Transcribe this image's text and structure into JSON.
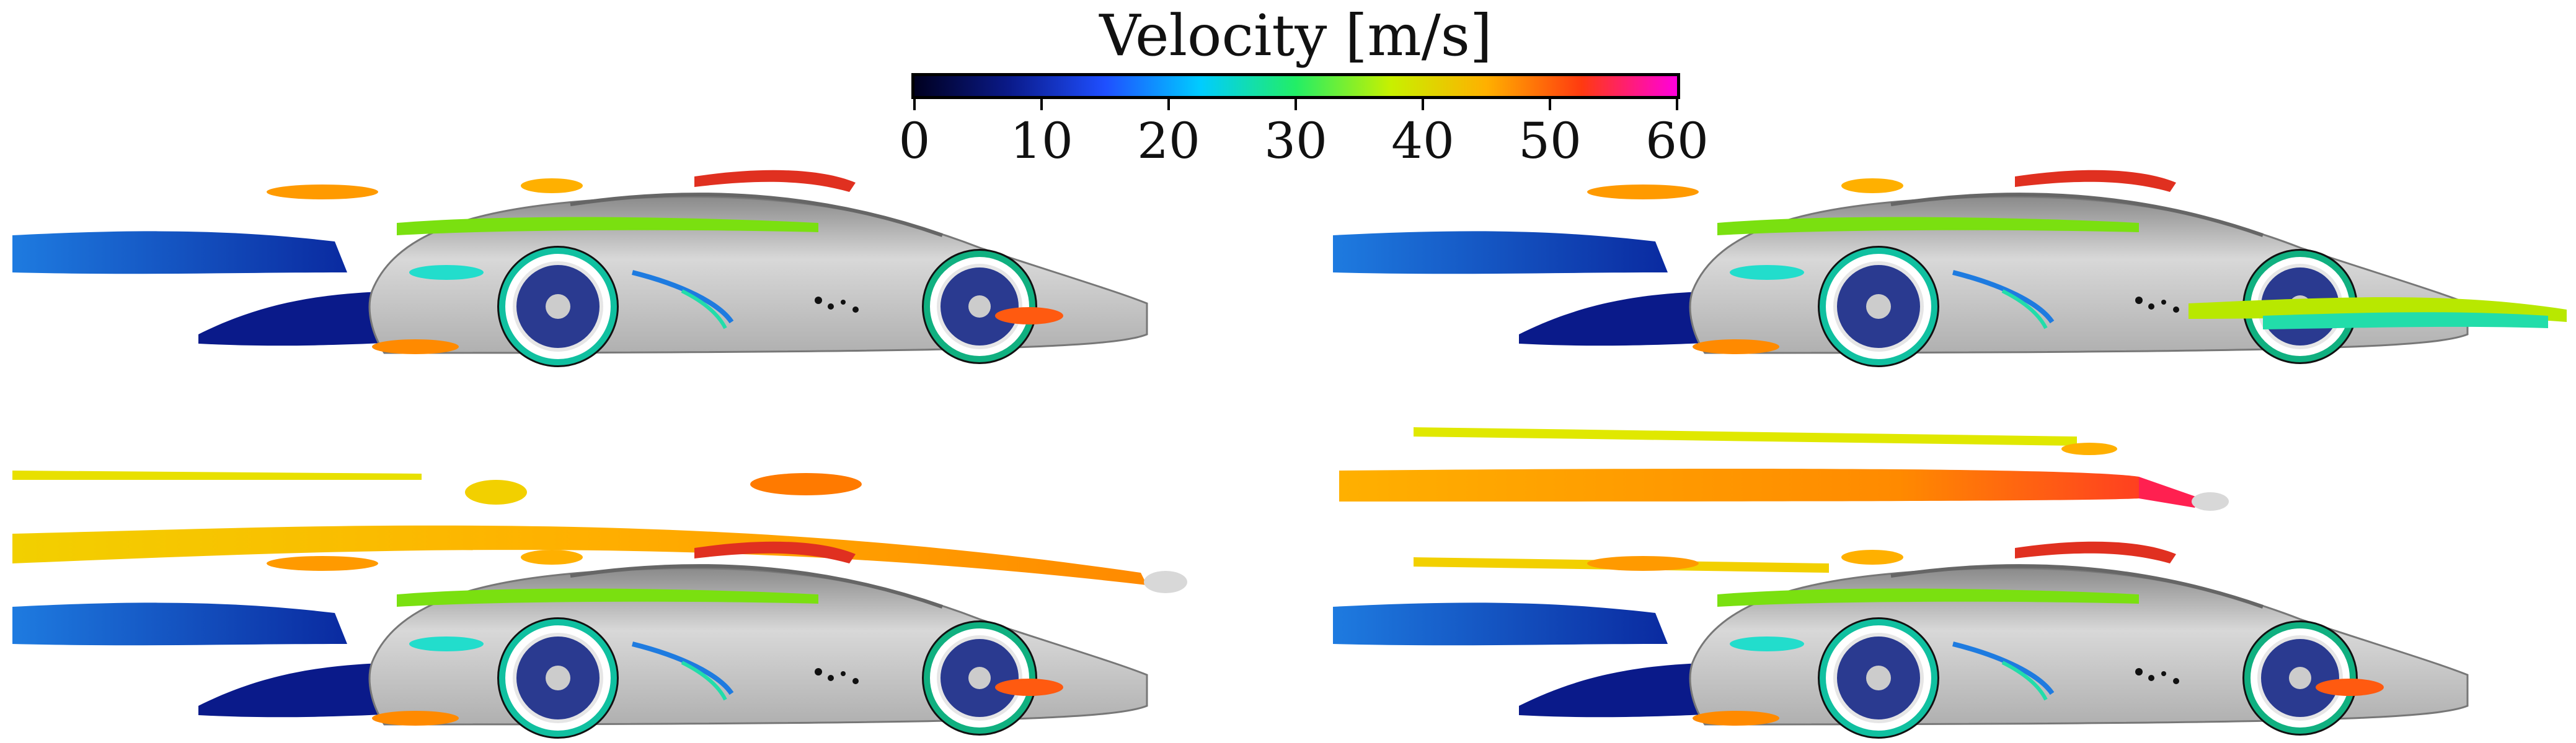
{
  "colorbar": {
    "title": "Velocity [m/s]",
    "ticks": [
      "0",
      "10",
      "20",
      "30",
      "40",
      "50",
      "60"
    ],
    "min": 0,
    "max": 60,
    "colormap": [
      "#000020",
      "#0a1a8a",
      "#1f4fff",
      "#00ccff",
      "#22ee66",
      "#c8f000",
      "#ffb000",
      "#ff3a10",
      "#ff00dd"
    ]
  },
  "panels": [
    {
      "id": "top-left",
      "streak_top": false,
      "front_streak": false
    },
    {
      "id": "top-right",
      "streak_top": false,
      "front_streak": true
    },
    {
      "id": "bottom-left",
      "streak_top": true,
      "front_streak": false
    },
    {
      "id": "bottom-right",
      "streak_top": true,
      "front_streak": false
    }
  ]
}
